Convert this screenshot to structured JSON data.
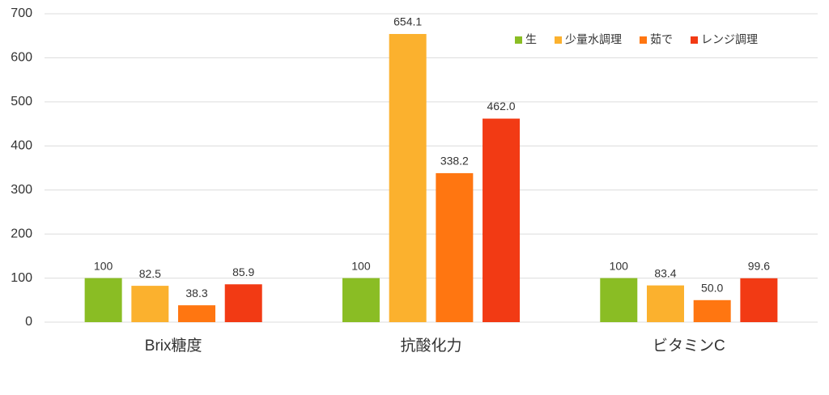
{
  "chart_data": {
    "type": "bar",
    "categories": [
      "Brix糖度",
      "抗酸化力",
      "ビタミンC"
    ],
    "series": [
      {
        "name": "生",
        "color": "#8abd24",
        "values": [
          100,
          100,
          100
        ],
        "value_labels": [
          "100",
          "100",
          "100"
        ]
      },
      {
        "name": "少量水調理",
        "color": "#fbb12e",
        "values": [
          82.5,
          654.1,
          83.4
        ],
        "value_labels": [
          "82.5",
          "654.1",
          "83.4"
        ]
      },
      {
        "name": "茹で",
        "color": "#ff7611",
        "values": [
          38.3,
          338.2,
          50.0
        ],
        "value_labels": [
          "38.3",
          "338.2",
          "50.0"
        ]
      },
      {
        "name": "レンジ調理",
        "color": "#f23a14",
        "values": [
          85.9,
          462.0,
          99.6
        ],
        "value_labels": [
          "85.9",
          "462.0",
          "99.6"
        ]
      }
    ],
    "ylim": [
      0,
      700
    ],
    "yticks": [
      0,
      100,
      200,
      300,
      400,
      500,
      600,
      700
    ],
    "grid": true,
    "legend": "top-right"
  }
}
